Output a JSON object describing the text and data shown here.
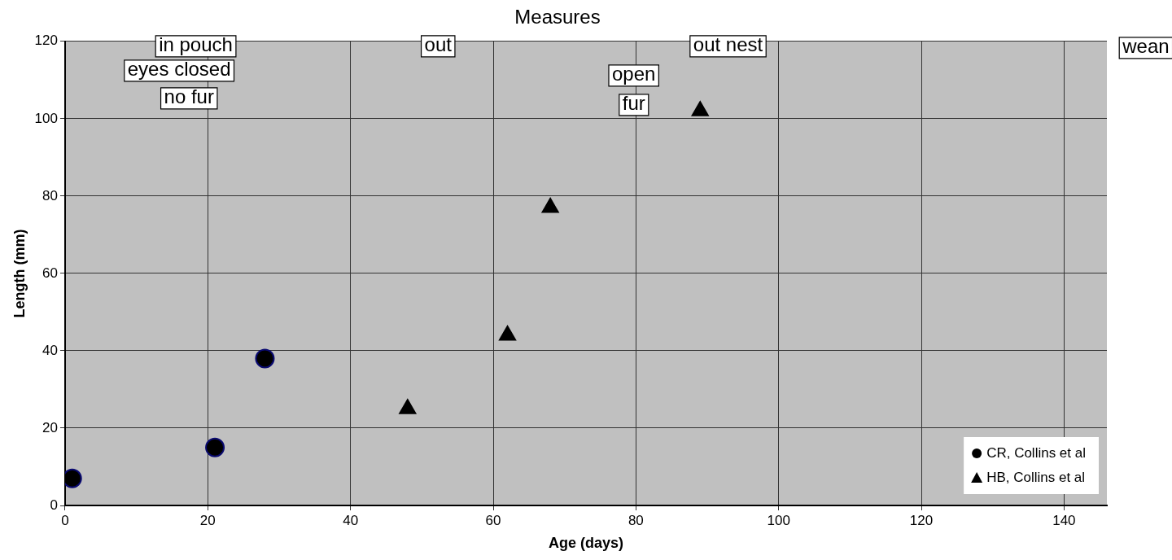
{
  "chart_data": {
    "type": "scatter",
    "title": "Measures",
    "xlabel": "Age (days)",
    "ylabel": "Length (mm)",
    "xlim": [
      0,
      146
    ],
    "xticks": [
      0,
      20,
      40,
      60,
      80,
      100,
      120,
      140
    ],
    "ylim": [
      0,
      120
    ],
    "yticks": [
      0,
      20,
      40,
      60,
      80,
      100,
      120
    ],
    "grid": true,
    "legend": "bottom right",
    "series": [
      {
        "name": "CR, Collins et al",
        "color": "#000000",
        "marker": "circle",
        "x": [
          1,
          21,
          28
        ],
        "values": [
          7,
          15,
          38
        ]
      },
      {
        "name": "HB, Collins et al",
        "color": "#000000",
        "marker": "triangle",
        "x": [
          48,
          62,
          68,
          89
        ],
        "values": [
          25,
          44,
          77,
          102
        ]
      }
    ],
    "annotations": [
      "in pouch",
      "out",
      "out nest",
      "wean",
      "eyes closed",
      "open",
      "no fur",
      "fur"
    ]
  }
}
